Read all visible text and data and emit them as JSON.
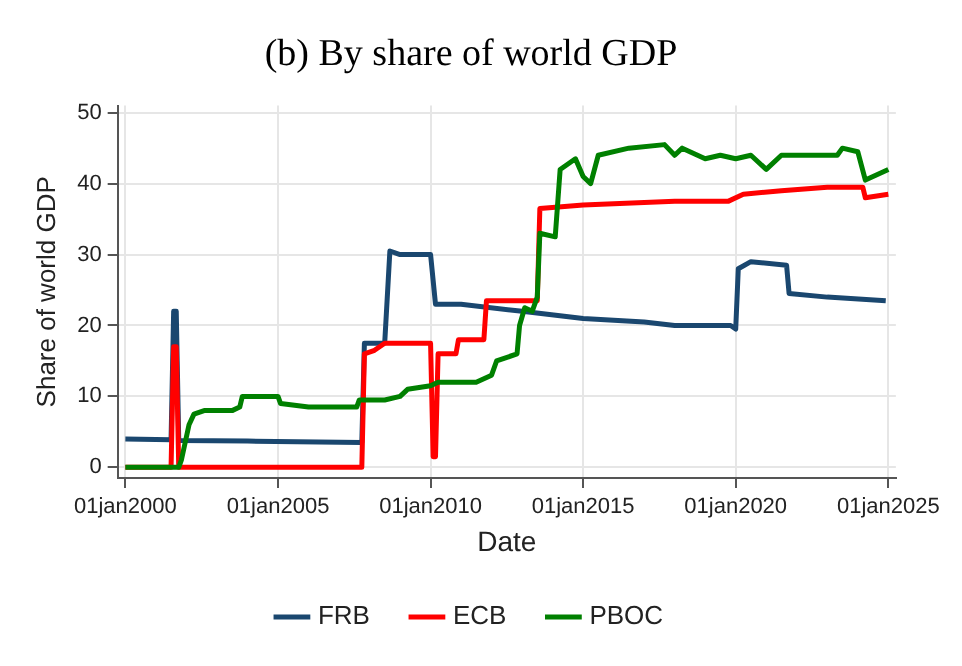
{
  "chart_data": {
    "type": "line",
    "title": "(b) By share of world GDP",
    "xlabel": "Date",
    "ylabel": "Share of world GDP",
    "xlim": [
      "1999-10",
      "2025-04"
    ],
    "xticks": [
      {
        "value": "2000-01-01",
        "label": "01jan2000"
      },
      {
        "value": "2005-01-01",
        "label": "01jan2005"
      },
      {
        "value": "2010-01-01",
        "label": "01jan2010"
      },
      {
        "value": "2015-01-01",
        "label": "01jan2015"
      },
      {
        "value": "2020-01-01",
        "label": "01jan2020"
      },
      {
        "value": "2025-01-01",
        "label": "01jan2025"
      }
    ],
    "ylim": [
      -1.5,
      51
    ],
    "yticks": [
      0,
      10,
      20,
      30,
      40,
      50
    ],
    "grid": true,
    "legend": "bottom",
    "line_style": "solid",
    "marker": "none",
    "series": [
      {
        "name": "FRB",
        "color": "#1a476f",
        "x": [
          "2000-01",
          "2001-07",
          "2001-08",
          "2001-09",
          "2001-10",
          "2004-01",
          "2007-10",
          "2007-11",
          "2008-07",
          "2008-09",
          "2009-01",
          "2010-01",
          "2010-03",
          "2011-01",
          "2013-01",
          "2015-01",
          "2017-01",
          "2018-01",
          "2019-11",
          "2020-01",
          "2020-02",
          "2020-07",
          "2021-09",
          "2021-10",
          "2023-01",
          "2024-12"
        ],
        "values": [
          4,
          3.9,
          22,
          22,
          3.8,
          3.7,
          3.5,
          17.5,
          17.5,
          30.5,
          30,
          30,
          23,
          23,
          22,
          21,
          20.5,
          20,
          20,
          19.5,
          28,
          29,
          28.5,
          24.5,
          24,
          23.5
        ]
      },
      {
        "name": "ECB",
        "color": "#ff0000",
        "x": [
          "2000-01",
          "2001-07",
          "2001-08",
          "2001-09",
          "2001-10",
          "2007-10",
          "2007-11",
          "2008-03",
          "2008-07",
          "2010-01",
          "2010-02",
          "2010-03",
          "2010-04",
          "2010-11",
          "2010-12",
          "2011-10",
          "2011-11",
          "2013-07",
          "2013-08",
          "2015-01",
          "2018-01",
          "2019-10",
          "2020-04",
          "2021-07",
          "2023-01",
          "2024-03",
          "2024-04",
          "2025-01"
        ],
        "values": [
          0,
          0,
          17,
          17,
          0,
          0,
          16,
          16.5,
          17.5,
          17.5,
          1.5,
          1.5,
          16,
          16,
          18,
          18,
          23.5,
          23.5,
          36.5,
          37,
          37.5,
          37.5,
          38.5,
          39,
          39.5,
          39.5,
          38,
          38.5
        ]
      },
      {
        "name": "PBOC",
        "color": "#008000",
        "x": [
          "2000-01",
          "2001-10",
          "2001-11",
          "2002-02",
          "2002-04",
          "2002-08",
          "2003-07",
          "2003-10",
          "2003-11",
          "2005-01",
          "2005-02",
          "2006-01",
          "2007-08",
          "2007-09",
          "2008-07",
          "2009-01",
          "2009-04",
          "2010-01",
          "2010-04",
          "2011-07",
          "2012-01",
          "2012-03",
          "2012-11",
          "2012-12",
          "2013-02",
          "2013-05",
          "2013-07",
          "2013-08",
          "2014-02",
          "2014-04",
          "2014-10",
          "2015-01",
          "2015-04",
          "2015-07",
          "2016-07",
          "2017-09",
          "2018-01",
          "2018-04",
          "2019-01",
          "2019-07",
          "2020-01",
          "2020-07",
          "2021-01",
          "2021-07",
          "2023-05",
          "2023-07",
          "2024-01",
          "2024-04",
          "2025-01"
        ],
        "values": [
          0,
          0,
          1,
          6,
          7.5,
          8,
          8,
          8.5,
          10,
          10,
          9,
          8.5,
          8.5,
          9.5,
          9.5,
          10,
          11,
          11.5,
          12,
          12,
          13,
          15,
          16,
          20,
          22.5,
          22,
          24,
          33,
          32.5,
          42,
          43.5,
          41,
          40,
          44,
          45,
          45.5,
          44,
          45,
          43.5,
          44,
          43.5,
          44,
          42,
          44,
          44,
          45,
          44.5,
          40.5,
          42
        ]
      }
    ]
  }
}
